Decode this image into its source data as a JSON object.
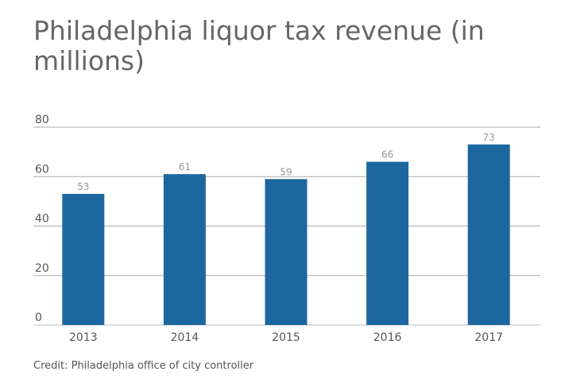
{
  "chart_data": {
    "type": "bar",
    "title": "Philadelphia liquor tax revenue (in millions)",
    "categories": [
      "2013",
      "2014",
      "2015",
      "2016",
      "2017"
    ],
    "values": [
      53,
      61,
      59,
      66,
      73
    ],
    "data_labels": [
      "53",
      "61",
      "59",
      "66",
      "73"
    ],
    "yticks": [
      "0",
      "20",
      "40",
      "60",
      "80"
    ],
    "ylim": [
      0,
      80
    ],
    "xlabel": "",
    "ylabel": "",
    "grid": true,
    "bar_color": "#1c67a0",
    "credit": "Credit: Philadelphia office of city controller"
  }
}
